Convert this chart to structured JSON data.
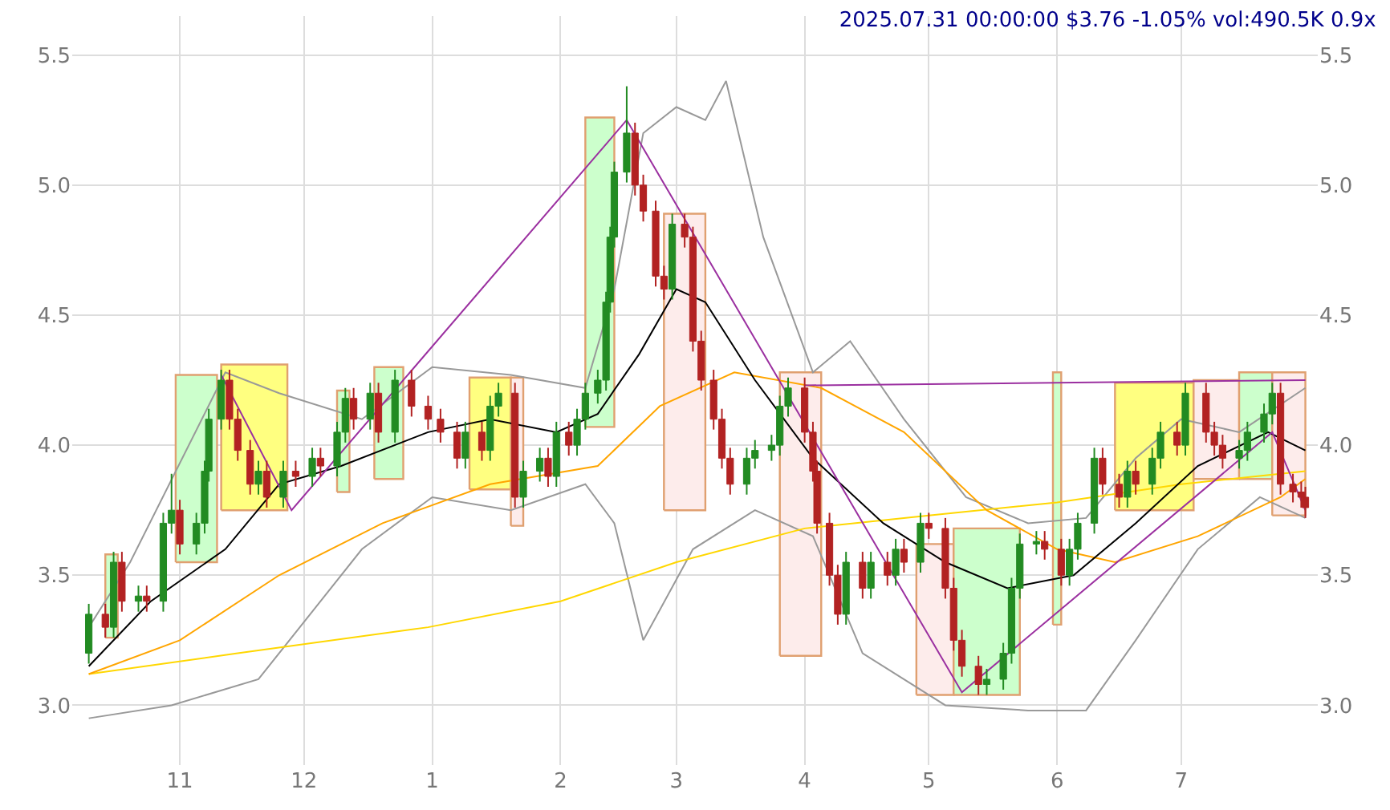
{
  "chart_data": {
    "type": "candlestick",
    "title": "2025.07.31 00:00:00 $3.76 -1.05% vol:490.5K 0.9x",
    "x": [
      "2024-10-10",
      "2024-10-14",
      "2024-10-16",
      "2024-10-18",
      "2024-10-22",
      "2024-10-24",
      "2024-10-28",
      "2024-10-30",
      "2024-11-01",
      "2024-11-05",
      "2024-11-07",
      "2024-11-08",
      "2024-11-11",
      "2024-11-13",
      "2024-11-15",
      "2024-11-18",
      "2024-11-20",
      "2024-11-22",
      "2024-11-26",
      "2024-11-29",
      "2024-12-03",
      "2024-12-05",
      "2024-12-09",
      "2024-12-11",
      "2024-12-13",
      "2024-12-17",
      "2024-12-19",
      "2024-12-23",
      "2024-12-27",
      "2024-12-31",
      "2025-01-03",
      "2025-01-07",
      "2025-01-09",
      "2025-01-13",
      "2025-01-15",
      "2025-01-17",
      "2025-01-21",
      "2025-01-23",
      "2025-01-27",
      "2025-01-29",
      "2025-01-31",
      "2025-02-03",
      "2025-02-05",
      "2025-02-07",
      "2025-02-10",
      "2025-02-12",
      "2025-02-13",
      "2025-02-14",
      "2025-02-17",
      "2025-02-19",
      "2025-02-21",
      "2025-02-24",
      "2025-02-26",
      "2025-02-28",
      "2025-03-03",
      "2025-03-05",
      "2025-03-07",
      "2025-03-10",
      "2025-03-12",
      "2025-03-14",
      "2025-03-18",
      "2025-03-20",
      "2025-03-24",
      "2025-03-26",
      "2025-03-28",
      "2025-04-01",
      "2025-04-03",
      "2025-04-04",
      "2025-04-07",
      "2025-04-09",
      "2025-04-11",
      "2025-04-15",
      "2025-04-17",
      "2025-04-21",
      "2025-04-23",
      "2025-04-25",
      "2025-04-29",
      "2025-05-01",
      "2025-05-05",
      "2025-05-07",
      "2025-05-09",
      "2025-05-13",
      "2025-05-15",
      "2025-05-19",
      "2025-05-21",
      "2025-05-23",
      "2025-05-27",
      "2025-05-29",
      "2025-06-02",
      "2025-06-04",
      "2025-06-06",
      "2025-06-10",
      "2025-06-12",
      "2025-06-16",
      "2025-06-18",
      "2025-06-20",
      "2025-06-24",
      "2025-06-26",
      "2025-06-30",
      "2025-07-02",
      "2025-07-07",
      "2025-07-09",
      "2025-07-11",
      "2025-07-15",
      "2025-07-17",
      "2025-07-21",
      "2025-07-23",
      "2025-07-25",
      "2025-07-28",
      "2025-07-30",
      "2025-07-31"
    ],
    "ohlc": [
      [
        3.2,
        3.39,
        3.16,
        3.35
      ],
      [
        3.35,
        3.39,
        3.26,
        3.3
      ],
      [
        3.3,
        3.59,
        3.26,
        3.55
      ],
      [
        3.55,
        3.59,
        3.36,
        3.4
      ],
      [
        3.4,
        3.46,
        3.36,
        3.42
      ],
      [
        3.42,
        3.46,
        3.36,
        3.4
      ],
      [
        3.4,
        3.74,
        3.36,
        3.7
      ],
      [
        3.7,
        3.89,
        3.66,
        3.75
      ],
      [
        3.75,
        3.79,
        3.58,
        3.62
      ],
      [
        3.62,
        3.74,
        3.58,
        3.7
      ],
      [
        3.7,
        3.94,
        3.66,
        3.9
      ],
      [
        3.9,
        4.14,
        3.86,
        4.1
      ],
      [
        4.1,
        4.29,
        4.06,
        4.25
      ],
      [
        4.25,
        4.29,
        4.06,
        4.1
      ],
      [
        4.1,
        4.14,
        3.94,
        3.98
      ],
      [
        3.98,
        4.02,
        3.81,
        3.85
      ],
      [
        3.85,
        3.94,
        3.81,
        3.9
      ],
      [
        3.9,
        3.94,
        3.76,
        3.8
      ],
      [
        3.8,
        3.94,
        3.76,
        3.9
      ],
      [
        3.9,
        3.94,
        3.84,
        3.88
      ],
      [
        3.88,
        3.99,
        3.84,
        3.95
      ],
      [
        3.95,
        3.99,
        3.88,
        3.92
      ],
      [
        3.92,
        4.09,
        3.88,
        4.05
      ],
      [
        4.05,
        4.22,
        4.01,
        4.18
      ],
      [
        4.18,
        4.22,
        4.06,
        4.1
      ],
      [
        4.1,
        4.24,
        4.06,
        4.2
      ],
      [
        4.2,
        4.24,
        4.01,
        4.05
      ],
      [
        4.05,
        4.29,
        4.01,
        4.25
      ],
      [
        4.25,
        4.29,
        4.11,
        4.15
      ],
      [
        4.15,
        4.19,
        4.06,
        4.1
      ],
      [
        4.1,
        4.14,
        4.01,
        4.05
      ],
      [
        4.05,
        4.09,
        3.91,
        3.95
      ],
      [
        3.95,
        4.09,
        3.91,
        4.05
      ],
      [
        4.05,
        4.09,
        3.94,
        3.98
      ],
      [
        3.98,
        4.19,
        3.94,
        4.15
      ],
      [
        4.15,
        4.24,
        4.11,
        4.2
      ],
      [
        4.2,
        4.24,
        3.76,
        3.8
      ],
      [
        3.8,
        3.94,
        3.76,
        3.9
      ],
      [
        3.9,
        3.99,
        3.86,
        3.95
      ],
      [
        3.95,
        3.99,
        3.84,
        3.88
      ],
      [
        3.88,
        4.09,
        3.84,
        4.05
      ],
      [
        4.05,
        4.09,
        3.96,
        4.0
      ],
      [
        4.0,
        4.14,
        3.96,
        4.1
      ],
      [
        4.1,
        4.24,
        4.06,
        4.2
      ],
      [
        4.2,
        4.29,
        4.16,
        4.25
      ],
      [
        4.25,
        4.59,
        4.21,
        4.55
      ],
      [
        4.55,
        4.84,
        4.51,
        4.8
      ],
      [
        4.8,
        5.09,
        4.76,
        5.05
      ],
      [
        5.05,
        5.38,
        5.01,
        5.2
      ],
      [
        5.2,
        5.24,
        4.96,
        5.0
      ],
      [
        5.0,
        5.04,
        4.86,
        4.9
      ],
      [
        4.9,
        4.94,
        4.61,
        4.65
      ],
      [
        4.65,
        4.69,
        4.56,
        4.6
      ],
      [
        4.6,
        4.89,
        4.56,
        4.85
      ],
      [
        4.85,
        4.89,
        4.76,
        4.8
      ],
      [
        4.8,
        4.84,
        4.36,
        4.4
      ],
      [
        4.4,
        4.44,
        4.21,
        4.25
      ],
      [
        4.25,
        4.29,
        4.06,
        4.1
      ],
      [
        4.1,
        4.14,
        3.91,
        3.95
      ],
      [
        3.95,
        3.99,
        3.81,
        3.85
      ],
      [
        3.85,
        3.99,
        3.81,
        3.95
      ],
      [
        3.95,
        4.02,
        3.91,
        3.98
      ],
      [
        3.98,
        4.04,
        3.94,
        4.0
      ],
      [
        4.0,
        4.19,
        3.96,
        4.15
      ],
      [
        4.15,
        4.26,
        4.11,
        4.22
      ],
      [
        4.22,
        4.26,
        4.01,
        4.05
      ],
      [
        4.05,
        4.09,
        3.86,
        3.9
      ],
      [
        3.9,
        3.94,
        3.66,
        3.7
      ],
      [
        3.7,
        3.74,
        3.46,
        3.5
      ],
      [
        3.5,
        3.54,
        3.31,
        3.35
      ],
      [
        3.35,
        3.59,
        3.31,
        3.55
      ],
      [
        3.55,
        3.59,
        3.41,
        3.45
      ],
      [
        3.45,
        3.59,
        3.41,
        3.55
      ],
      [
        3.55,
        3.59,
        3.46,
        3.5
      ],
      [
        3.5,
        3.64,
        3.46,
        3.6
      ],
      [
        3.6,
        3.64,
        3.51,
        3.55
      ],
      [
        3.55,
        3.74,
        3.51,
        3.7
      ],
      [
        3.7,
        3.74,
        3.64,
        3.68
      ],
      [
        3.68,
        3.72,
        3.41,
        3.45
      ],
      [
        3.45,
        3.49,
        3.21,
        3.25
      ],
      [
        3.25,
        3.29,
        3.11,
        3.15
      ],
      [
        3.15,
        3.19,
        3.04,
        3.08
      ],
      [
        3.08,
        3.14,
        3.04,
        3.1
      ],
      [
        3.1,
        3.24,
        3.06,
        3.2
      ],
      [
        3.2,
        3.49,
        3.16,
        3.45
      ],
      [
        3.45,
        3.66,
        3.41,
        3.62
      ],
      [
        3.62,
        3.67,
        3.58,
        3.63
      ],
      [
        3.63,
        3.67,
        3.56,
        3.6
      ],
      [
        3.6,
        3.64,
        3.46,
        3.5
      ],
      [
        3.5,
        3.64,
        3.46,
        3.6
      ],
      [
        3.6,
        3.74,
        3.56,
        3.7
      ],
      [
        3.7,
        3.99,
        3.66,
        3.95
      ],
      [
        3.95,
        3.99,
        3.81,
        3.85
      ],
      [
        3.85,
        3.89,
        3.76,
        3.8
      ],
      [
        3.8,
        3.94,
        3.76,
        3.9
      ],
      [
        3.9,
        3.94,
        3.81,
        3.85
      ],
      [
        3.85,
        3.99,
        3.81,
        3.95
      ],
      [
        3.95,
        4.09,
        3.91,
        4.05
      ],
      [
        4.05,
        4.09,
        3.96,
        4.0
      ],
      [
        4.0,
        4.24,
        3.96,
        4.2
      ],
      [
        4.2,
        4.24,
        4.01,
        4.05
      ],
      [
        4.05,
        4.09,
        3.96,
        4.0
      ],
      [
        4.0,
        4.04,
        3.91,
        3.95
      ],
      [
        3.95,
        4.02,
        3.91,
        3.98
      ],
      [
        3.98,
        4.09,
        3.94,
        4.05
      ],
      [
        4.05,
        4.16,
        4.01,
        4.12
      ],
      [
        4.12,
        4.24,
        4.08,
        4.2
      ],
      [
        4.2,
        4.24,
        3.81,
        3.85
      ],
      [
        3.85,
        3.89,
        3.78,
        3.82
      ],
      [
        3.82,
        3.86,
        3.76,
        3.8
      ],
      [
        3.8,
        3.84,
        3.72,
        3.76
      ]
    ],
    "colors": [
      "#228b22",
      "#b22222",
      "#228b22",
      "#b22222",
      "#228b22",
      "#b22222",
      "#228b22",
      "#228b22",
      "#b22222",
      "#228b22",
      "#228b22",
      "#228b22",
      "#228b22",
      "#b22222",
      "#b22222",
      "#b22222",
      "#228b22",
      "#b22222",
      "#228b22",
      "#b22222",
      "#228b22",
      "#b22222",
      "#228b22",
      "#228b22",
      "#b22222",
      "#228b22",
      "#b22222",
      "#228b22",
      "#b22222",
      "#b22222",
      "#b22222",
      "#b22222",
      "#228b22",
      "#b22222",
      "#228b22",
      "#228b22",
      "#b22222",
      "#228b22",
      "#228b22",
      "#b22222",
      "#228b22",
      "#b22222",
      "#228b22",
      "#228b22",
      "#228b22",
      "#228b22",
      "#228b22",
      "#228b22",
      "#228b22",
      "#b22222",
      "#b22222",
      "#b22222",
      "#b22222",
      "#228b22",
      "#b22222",
      "#b22222",
      "#b22222",
      "#b22222",
      "#b22222",
      "#b22222",
      "#228b22",
      "#228b22",
      "#228b22",
      "#228b22",
      "#228b22",
      "#b22222",
      "#b22222",
      "#b22222",
      "#b22222",
      "#b22222",
      "#228b22",
      "#b22222",
      "#228b22",
      "#b22222",
      "#228b22",
      "#b22222",
      "#228b22",
      "#b22222",
      "#b22222",
      "#b22222",
      "#b22222",
      "#b22222",
      "#228b22",
      "#228b22",
      "#228b22",
      "#228b22",
      "#228b22",
      "#b22222",
      "#b22222",
      "#228b22",
      "#228b22",
      "#228b22",
      "#b22222",
      "#b22222",
      "#228b22",
      "#b22222",
      "#228b22",
      "#228b22",
      "#b22222",
      "#228b22",
      "#b22222",
      "#b22222",
      "#b22222",
      "#228b22",
      "#228b22",
      "#228b22",
      "#228b22",
      "#b22222",
      "#b22222",
      "#b22222",
      "#b22222"
    ],
    "series": [
      {
        "type": "area",
        "color": "#ccffcc",
        "x": [
          "2024-10-14",
          "2024-10-17",
          "2024-10-17",
          "2024-10-14",
          "2024-10-14"
        ],
        "values": [
          3.26,
          3.26,
          3.58,
          3.58,
          3.26
        ]
      },
      {
        "type": "area",
        "color": "#ccffcc",
        "x": [
          "2024-10-31",
          "2024-11-10",
          "2024-11-10",
          "2024-10-31",
          "2024-10-31"
        ],
        "values": [
          3.55,
          3.55,
          4.27,
          4.27,
          3.55
        ]
      },
      {
        "type": "area",
        "color": "#ffff80",
        "x": [
          "2024-11-11",
          "2024-11-27",
          "2024-11-27",
          "2024-11-11",
          "2024-11-11"
        ],
        "values": [
          3.75,
          3.75,
          4.31,
          4.31,
          3.75
        ]
      },
      {
        "type": "area",
        "color": "#ccffcc",
        "x": [
          "2024-12-09",
          "2024-12-12",
          "2024-12-12",
          "2024-12-09",
          "2024-12-09"
        ],
        "values": [
          3.82,
          3.82,
          4.21,
          4.21,
          3.82
        ]
      },
      {
        "type": "area",
        "color": "#ccffcc",
        "x": [
          "2024-12-18",
          "2024-12-25",
          "2024-12-25",
          "2024-12-18",
          "2024-12-18"
        ],
        "values": [
          3.87,
          3.87,
          4.3,
          4.3,
          3.87
        ]
      },
      {
        "type": "area",
        "color": "#ffff80",
        "x": [
          "2025-01-10",
          "2025-01-20",
          "2025-01-20",
          "2025-01-10",
          "2025-01-10"
        ],
        "values": [
          3.83,
          3.83,
          4.26,
          4.26,
          3.83
        ]
      },
      {
        "type": "area",
        "color": "#fdeceb",
        "x": [
          "2025-01-20",
          "2025-01-23",
          "2025-01-23",
          "2025-01-20",
          "2025-01-20"
        ],
        "values": [
          3.69,
          3.69,
          4.26,
          4.26,
          3.69
        ]
      },
      {
        "type": "area",
        "color": "#ccffcc",
        "x": [
          "2025-02-07",
          "2025-02-14",
          "2025-02-14",
          "2025-02-07",
          "2025-02-07"
        ],
        "values": [
          4.07,
          4.07,
          5.26,
          5.26,
          4.07
        ]
      },
      {
        "type": "area",
        "color": "#fdeceb",
        "x": [
          "2025-02-26",
          "2025-03-08",
          "2025-03-08",
          "2025-02-26",
          "2025-02-26"
        ],
        "values": [
          3.75,
          3.75,
          4.89,
          4.89,
          3.75
        ]
      },
      {
        "type": "area",
        "color": "#fdeceb",
        "x": [
          "2025-03-26",
          "2025-04-05",
          "2025-04-05",
          "2025-03-26",
          "2025-03-26"
        ],
        "values": [
          3.19,
          3.19,
          4.28,
          4.28,
          3.19
        ]
      },
      {
        "type": "area",
        "color": "#fdeceb",
        "x": [
          "2025-04-28",
          "2025-05-07",
          "2025-05-07",
          "2025-04-28",
          "2025-04-28"
        ],
        "values": [
          3.04,
          3.04,
          3.62,
          3.62,
          3.04
        ]
      },
      {
        "type": "area",
        "color": "#ccffcc",
        "x": [
          "2025-05-07",
          "2025-05-23",
          "2025-05-23",
          "2025-05-07",
          "2025-05-07"
        ],
        "values": [
          3.04,
          3.04,
          3.68,
          3.68,
          3.04
        ]
      },
      {
        "type": "area",
        "color": "#ccffcc",
        "x": [
          "2025-05-31",
          "2025-06-02",
          "2025-06-02",
          "2025-05-31",
          "2025-05-31"
        ],
        "values": [
          3.31,
          3.31,
          4.28,
          4.28,
          3.31
        ]
      },
      {
        "type": "area",
        "color": "#ffff80",
        "x": [
          "2025-06-15",
          "2025-07-04",
          "2025-07-04",
          "2025-06-15",
          "2025-06-15"
        ],
        "values": [
          3.75,
          3.75,
          4.24,
          4.24,
          3.75
        ]
      },
      {
        "type": "area",
        "color": "#fdeceb",
        "x": [
          "2025-07-04",
          "2025-07-15",
          "2025-07-15",
          "2025-07-04",
          "2025-07-04"
        ],
        "values": [
          3.87,
          3.87,
          4.25,
          4.25,
          3.87
        ]
      },
      {
        "type": "area",
        "color": "#ccffcc",
        "x": [
          "2025-07-15",
          "2025-07-23",
          "2025-07-23",
          "2025-07-15",
          "2025-07-15"
        ],
        "values": [
          3.87,
          3.87,
          4.28,
          4.28,
          3.87
        ]
      },
      {
        "type": "area",
        "color": "#fdeceb",
        "x": [
          "2025-07-23",
          "2025-07-31",
          "2025-07-31",
          "2025-07-23",
          "2025-07-23"
        ],
        "values": [
          3.73,
          3.73,
          4.28,
          4.28,
          3.73
        ]
      },
      {
        "type": "line",
        "color": "#999999",
        "x": [
          "2024-10-10",
          "2024-10-20",
          "2024-11-12",
          "2024-11-25",
          "2024-12-15",
          "2025-01-01",
          "2025-01-20",
          "2025-02-07",
          "2025-02-14",
          "2025-02-21",
          "2025-03-01",
          "2025-03-08",
          "2025-03-13",
          "2025-03-22",
          "2025-04-03",
          "2025-04-12",
          "2025-04-25",
          "2025-05-10",
          "2025-05-25",
          "2025-06-08",
          "2025-06-20",
          "2025-07-01",
          "2025-07-15",
          "2025-07-31"
        ],
        "values": [
          3.3,
          3.55,
          4.28,
          4.2,
          4.1,
          4.3,
          4.27,
          4.22,
          4.6,
          5.2,
          5.3,
          5.25,
          5.4,
          4.8,
          4.28,
          4.4,
          4.1,
          3.8,
          3.7,
          3.72,
          3.95,
          4.1,
          4.05,
          4.22
        ]
      },
      {
        "type": "line",
        "color": "#999999",
        "x": [
          "2024-10-10",
          "2024-10-30",
          "2024-11-20",
          "2024-12-15",
          "2025-01-01",
          "2025-01-20",
          "2025-02-07",
          "2025-02-14",
          "2025-02-21",
          "2025-03-05",
          "2025-03-20",
          "2025-04-03",
          "2025-04-15",
          "2025-05-05",
          "2025-05-25",
          "2025-06-08",
          "2025-06-20",
          "2025-07-05",
          "2025-07-20",
          "2025-07-31"
        ],
        "values": [
          2.95,
          3.0,
          3.1,
          3.6,
          3.8,
          3.75,
          3.85,
          3.7,
          3.25,
          3.6,
          3.75,
          3.65,
          3.2,
          3.0,
          2.98,
          2.98,
          3.25,
          3.6,
          3.8,
          3.72
        ]
      },
      {
        "type": "line",
        "color": "#ffd700",
        "x": [
          "2024-10-10",
          "2024-11-15",
          "2024-12-31",
          "2025-02-01",
          "2025-03-01",
          "2025-04-01",
          "2025-05-01",
          "2025-06-01",
          "2025-07-01",
          "2025-07-31"
        ],
        "values": [
          3.12,
          3.2,
          3.3,
          3.4,
          3.55,
          3.68,
          3.73,
          3.78,
          3.85,
          3.9
        ]
      },
      {
        "type": "line",
        "color": "#ffa500",
        "x": [
          "2024-10-10",
          "2024-11-01",
          "2024-11-25",
          "2024-12-20",
          "2025-01-15",
          "2025-02-10",
          "2025-02-25",
          "2025-03-15",
          "2025-04-05",
          "2025-04-25",
          "2025-05-15",
          "2025-06-01",
          "2025-06-15",
          "2025-07-05",
          "2025-07-25",
          "2025-07-31"
        ],
        "values": [
          3.12,
          3.25,
          3.5,
          3.7,
          3.85,
          3.92,
          4.15,
          4.28,
          4.22,
          4.05,
          3.75,
          3.6,
          3.55,
          3.65,
          3.8,
          3.87
        ]
      },
      {
        "type": "line",
        "color": "#000000",
        "x": [
          "2024-10-10",
          "2024-10-25",
          "2024-11-12",
          "2024-11-25",
          "2024-12-10",
          "2024-12-31",
          "2025-01-15",
          "2025-01-31",
          "2025-02-10",
          "2025-02-20",
          "2025-03-01",
          "2025-03-08",
          "2025-03-20",
          "2025-04-03",
          "2025-04-20",
          "2025-05-05",
          "2025-05-20",
          "2025-06-05",
          "2025-06-20",
          "2025-07-05",
          "2025-07-22",
          "2025-07-31"
        ],
        "values": [
          3.15,
          3.4,
          3.6,
          3.85,
          3.92,
          4.05,
          4.1,
          4.05,
          4.12,
          4.35,
          4.6,
          4.55,
          4.25,
          3.95,
          3.7,
          3.55,
          3.45,
          3.5,
          3.7,
          3.92,
          4.05,
          3.98
        ]
      },
      {
        "type": "line",
        "color": "#9b30a0",
        "x": [
          "2024-11-11",
          "2024-11-28",
          "2025-02-17",
          "2025-05-09",
          "2025-07-23",
          "2025-07-31"
        ],
        "values": [
          4.27,
          3.75,
          5.25,
          3.05,
          4.05,
          3.75
        ]
      },
      {
        "type": "line",
        "color": "#9b30a0",
        "x": [
          "2025-04-01",
          "2025-07-31"
        ],
        "values": [
          4.23,
          4.25
        ]
      }
    ],
    "xlim": [
      "2024-10-06",
      "2025-08-03"
    ],
    "xticks": [
      {
        "value": "2024-11-01",
        "label": "11"
      },
      {
        "value": "2024-12-01",
        "label": "12"
      },
      {
        "value": "2025-01-01",
        "label": "1"
      },
      {
        "value": "2025-02-01",
        "label": "2"
      },
      {
        "value": "2025-03-01",
        "label": "3"
      },
      {
        "value": "2025-04-01",
        "label": "4"
      },
      {
        "value": "2025-05-01",
        "label": "5"
      },
      {
        "value": "2025-06-01",
        "label": "6"
      },
      {
        "value": "2025-07-01",
        "label": "7"
      }
    ],
    "ylim": [
      2.77,
      5.65
    ],
    "yticks": [
      {
        "value": 3,
        "label": "3.0"
      },
      {
        "value": 3.5,
        "label": "3.5"
      },
      {
        "value": 4,
        "label": "4.0"
      },
      {
        "value": 4.5,
        "label": "4.5"
      },
      {
        "value": 5,
        "label": "5.0"
      },
      {
        "value": 5.5,
        "label": "5.5"
      }
    ],
    "y2lim": [
      2.77,
      5.65
    ],
    "y2ticks": [
      {
        "value": 3,
        "label": "3.0"
      },
      {
        "value": 3.5,
        "label": "3.5"
      },
      {
        "value": 4,
        "label": "4.0"
      },
      {
        "value": 4.5,
        "label": "4.5"
      },
      {
        "value": 5,
        "label": "5.0"
      },
      {
        "value": 5.5,
        "label": "5.5"
      }
    ],
    "grid": true
  }
}
